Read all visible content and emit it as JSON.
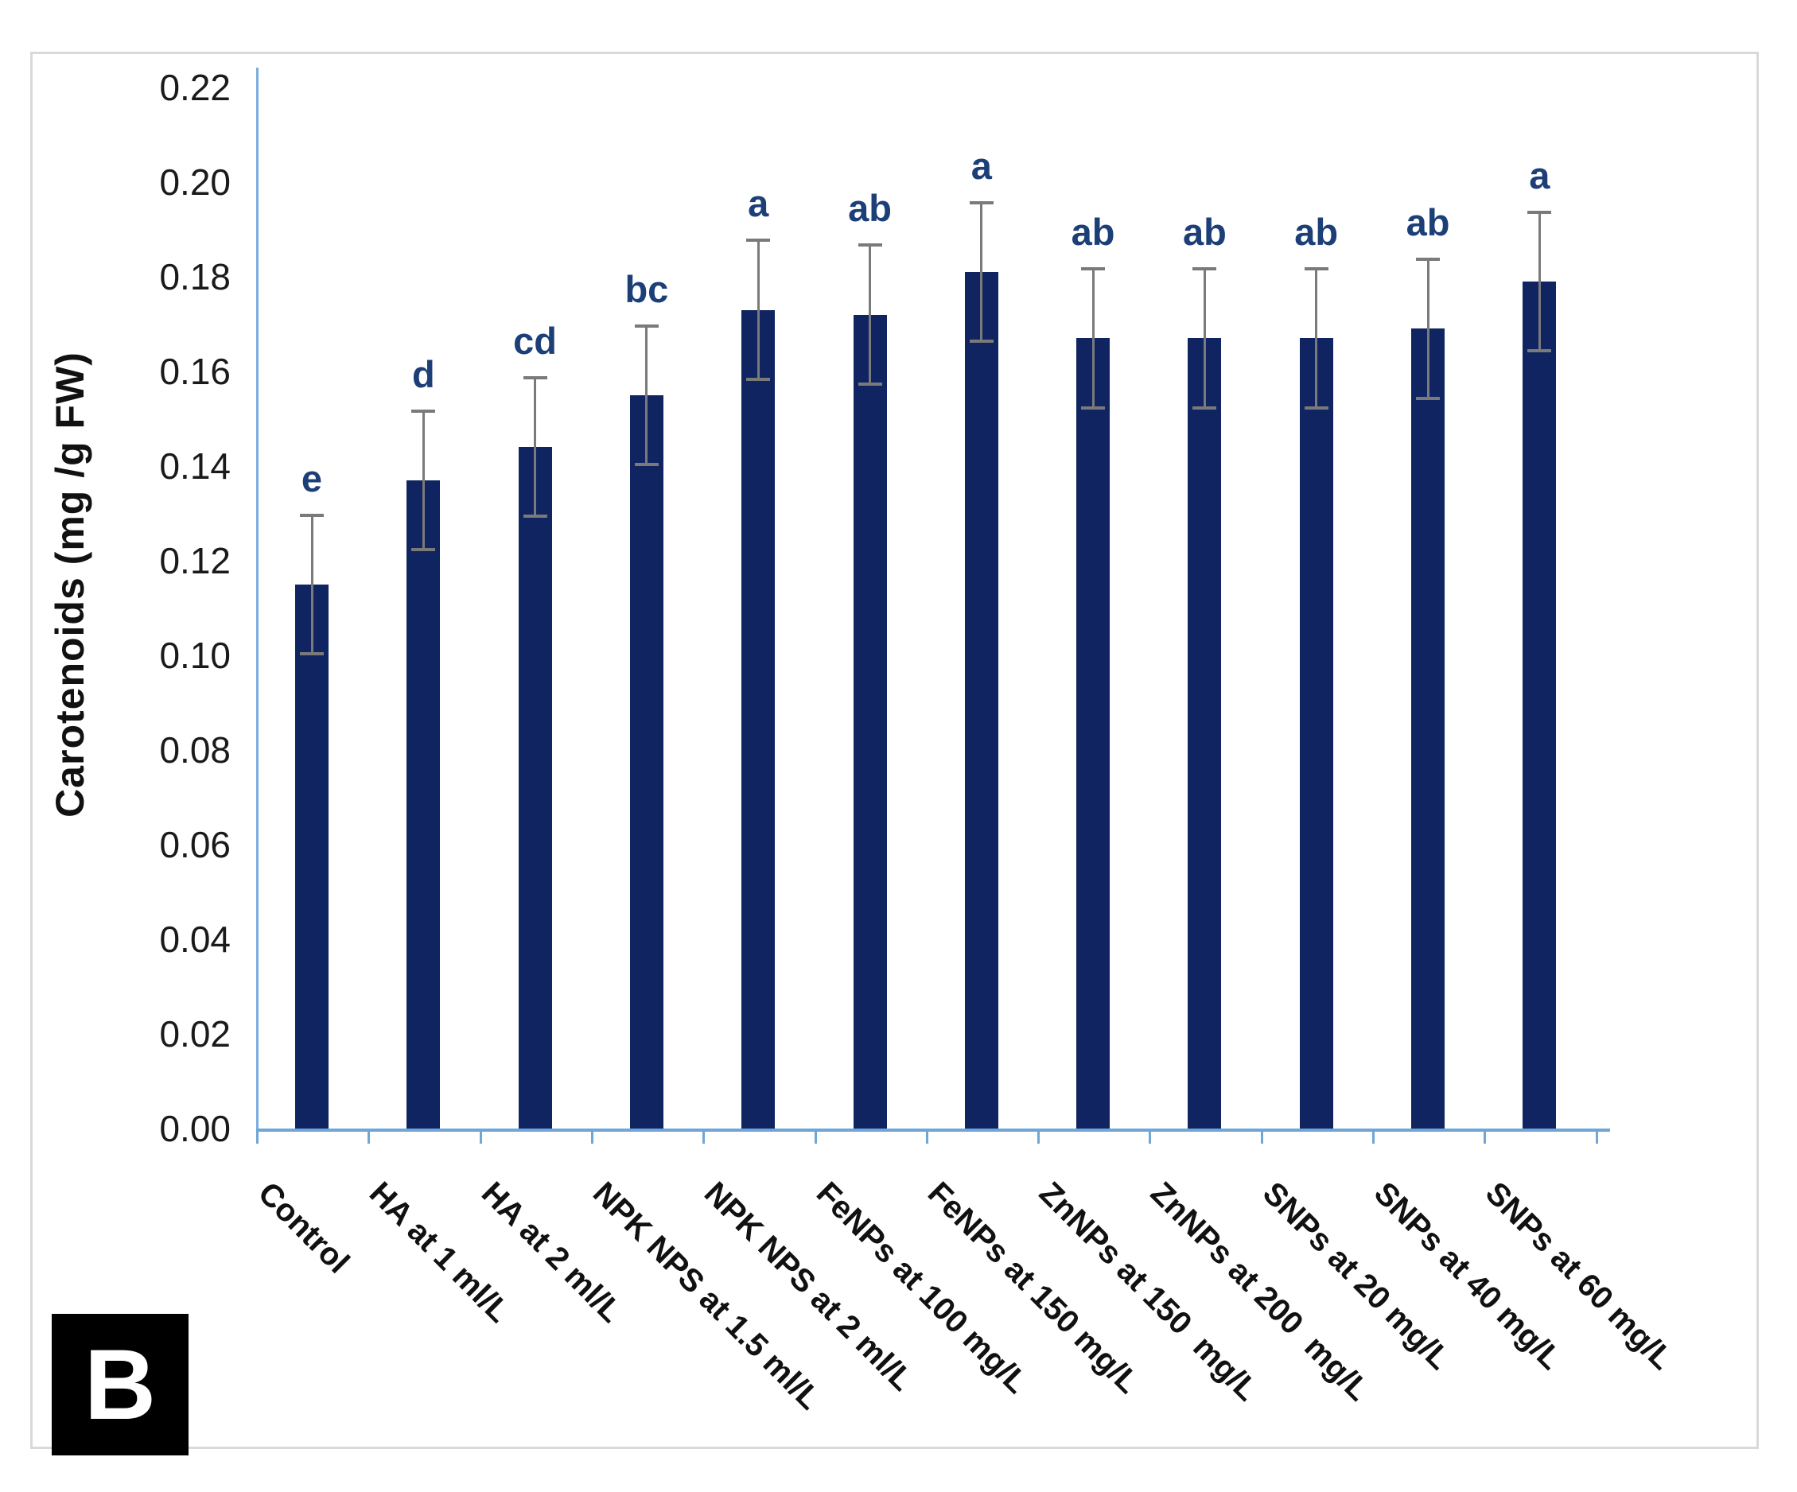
{
  "figure": {
    "panel_label": "B"
  },
  "chart_data": {
    "type": "bar",
    "title": "",
    "xlabel": "",
    "ylabel": "Carotenoids (mg /g FW)",
    "ylim": [
      0.0,
      0.22
    ],
    "y_tick_interval": 0.02,
    "y_ticks": [
      "0.00",
      "0.02",
      "0.04",
      "0.06",
      "0.08",
      "0.10",
      "0.12",
      "0.14",
      "0.16",
      "0.18",
      "0.20",
      "0.22"
    ],
    "grid": "off",
    "legend": "none",
    "bar_color": "#0f2460",
    "error_bar_color": "#7a7a7a",
    "axis_line_color": "#6fa6d6",
    "sig_letter_color": "#1d3f78",
    "categories": [
      "Control",
      "HA at 1 ml/L",
      "HA at 2 ml/L",
      "NPK NPS at 1.5 ml/L",
      "NPK NPS at 2 ml/L",
      "FeNPs at 100 mg/L",
      "FeNPs at 150 mg/L",
      "ZnNPs at 150  mg/L",
      "ZnNPs at 200  mg/L",
      "SNPs at 20 mg/L",
      "SNPs at 40 mg/L",
      "SNPs at 60 mg/L"
    ],
    "values": [
      0.115,
      0.137,
      0.144,
      0.155,
      0.173,
      0.172,
      0.181,
      0.167,
      0.167,
      0.167,
      0.169,
      0.179
    ],
    "error_bars": [
      0.015,
      0.015,
      0.015,
      0.015,
      0.015,
      0.015,
      0.015,
      0.015,
      0.015,
      0.015,
      0.015,
      0.015
    ],
    "significance_letters": [
      "e",
      "d",
      "cd",
      "bc",
      "a",
      "ab",
      "a",
      "ab",
      "ab",
      "ab",
      "ab",
      "a"
    ]
  }
}
